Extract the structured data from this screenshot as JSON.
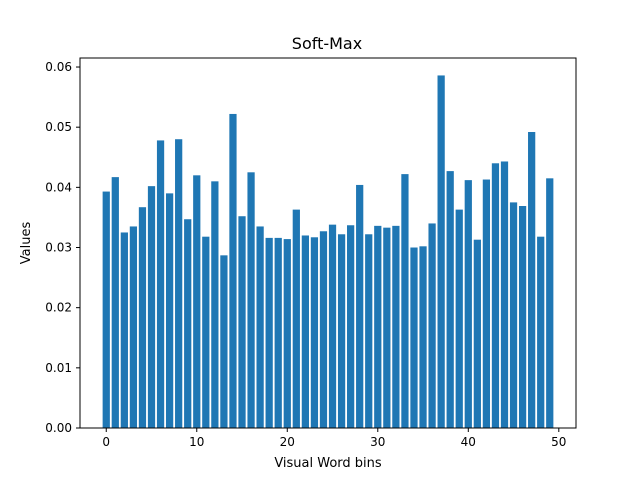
{
  "chart_data": {
    "type": "bar",
    "title": "Soft-Max",
    "xlabel": "Visual Word bins",
    "ylabel": "Values",
    "x": [
      0,
      1,
      2,
      3,
      4,
      5,
      6,
      7,
      8,
      9,
      10,
      11,
      12,
      13,
      14,
      15,
      16,
      17,
      18,
      19,
      20,
      21,
      22,
      23,
      24,
      25,
      26,
      27,
      28,
      29,
      30,
      31,
      32,
      33,
      34,
      35,
      36,
      37,
      38,
      39,
      40,
      41,
      42,
      43,
      44,
      45,
      46,
      47,
      48,
      49
    ],
    "values": [
      0.0393,
      0.0417,
      0.0325,
      0.0335,
      0.0367,
      0.0402,
      0.0478,
      0.039,
      0.048,
      0.0347,
      0.042,
      0.0318,
      0.041,
      0.0287,
      0.0522,
      0.0352,
      0.0425,
      0.0335,
      0.0316,
      0.0316,
      0.0314,
      0.0363,
      0.032,
      0.0317,
      0.0327,
      0.0338,
      0.0322,
      0.0337,
      0.0404,
      0.0322,
      0.0336,
      0.0333,
      0.0336,
      0.0422,
      0.03,
      0.0302,
      0.034,
      0.0586,
      0.0427,
      0.0363,
      0.0412,
      0.0313,
      0.0413,
      0.044,
      0.0443,
      0.0375,
      0.0369,
      0.0492,
      0.0318,
      0.0415
    ],
    "xlim": [
      -2.9,
      51.9
    ],
    "ylim": [
      0,
      0.0615
    ],
    "xticks": [
      0,
      10,
      20,
      30,
      40,
      50
    ],
    "xtick_labels": [
      "0",
      "10",
      "20",
      "30",
      "40",
      "50"
    ],
    "yticks": [
      0.0,
      0.01,
      0.02,
      0.03,
      0.04,
      0.05,
      0.06
    ],
    "ytick_labels": [
      "0.00",
      "0.01",
      "0.02",
      "0.03",
      "0.04",
      "0.05",
      "0.06"
    ],
    "bar_width": 0.8,
    "bar_color": "#1f77b4",
    "grid": false,
    "legend": "none"
  }
}
